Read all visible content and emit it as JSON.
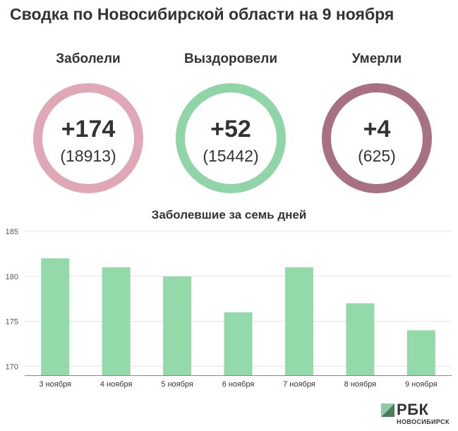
{
  "title": "Сводка по Новосибирской области на 9 ноября",
  "stats": [
    {
      "label": "Заболели",
      "delta": "+174",
      "total": "(18913)",
      "color": "#e0a7b6"
    },
    {
      "label": "Выздоровели",
      "delta": "+52",
      "total": "(15442)",
      "color": "#8fd5a8"
    },
    {
      "label": "Умерли",
      "delta": "+4",
      "total": "(625)",
      "color": "#a87183"
    }
  ],
  "chart_data": {
    "type": "bar",
    "title": "Заболевшие за семь дней",
    "categories": [
      "3 ноября",
      "4 ноября",
      "5 ноября",
      "6 ноября",
      "7 ноября",
      "8 ноября",
      "9 ноября"
    ],
    "values": [
      182,
      181,
      180,
      176,
      181,
      177,
      174
    ],
    "ylim": [
      169,
      185
    ],
    "yticks": [
      170,
      175,
      180,
      185
    ],
    "grid": true,
    "bar_color": "#94d9aa"
  },
  "logo": {
    "text": "РБК",
    "sub": "НОВОСИБИРСК"
  }
}
